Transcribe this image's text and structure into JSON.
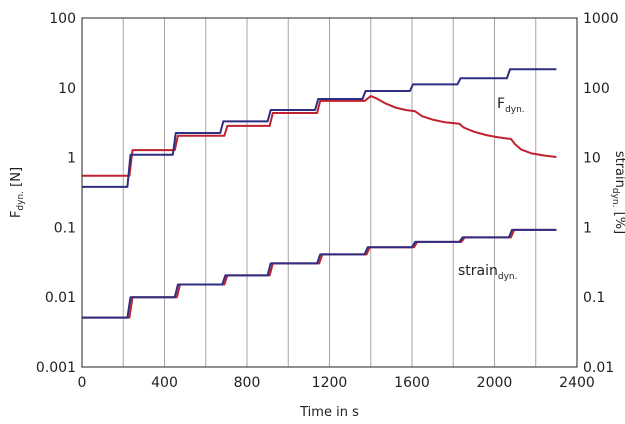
{
  "chart_data": {
    "type": "line",
    "xlabel": "Time in s",
    "ylabel_left": {
      "main": "F",
      "sub": "dyn.",
      "unit": " [N]"
    },
    "ylabel_right": {
      "main": "strain",
      "sub": "dyn.",
      "unit": " [%]"
    },
    "x_ticks": [
      "0",
      "400",
      "800",
      "1200",
      "1600",
      "2000",
      "2400"
    ],
    "xlim": [
      0,
      2400
    ],
    "x_grid": [
      0,
      200,
      400,
      600,
      800,
      1000,
      1200,
      1400,
      1600,
      1800,
      2000,
      2200,
      2400
    ],
    "y_left_ticks": [
      "0.001",
      "0.01",
      "0.1",
      "1",
      "10",
      "100"
    ],
    "y_left_values": [
      0.001,
      0.01,
      0.1,
      1,
      10,
      100
    ],
    "y_left_scale": "log",
    "ylim_left": [
      0.001,
      100
    ],
    "y_right_ticks": [
      "0.01",
      "0.1",
      "1",
      "10",
      "100",
      "1000"
    ],
    "y_right_values": [
      0.01,
      0.1,
      1,
      10,
      100,
      1000
    ],
    "y_right_scale": "log",
    "ylim_right": [
      0.01,
      1000
    ],
    "grid": "vertical",
    "series": [
      {
        "label_main": "F",
        "label_sub": "dyn.",
        "axis": "left",
        "color": "#c0212e",
        "points": [
          [
            0,
            0.55
          ],
          [
            230,
            0.55
          ],
          [
            245,
            1.28
          ],
          [
            450,
            1.28
          ],
          [
            465,
            2.05
          ],
          [
            690,
            2.05
          ],
          [
            705,
            2.85
          ],
          [
            910,
            2.85
          ],
          [
            925,
            4.35
          ],
          [
            1140,
            4.35
          ],
          [
            1155,
            6.5
          ],
          [
            1370,
            6.5
          ],
          [
            1400,
            7.6
          ],
          [
            1430,
            7.0
          ],
          [
            1470,
            6.0
          ],
          [
            1520,
            5.2
          ],
          [
            1570,
            4.8
          ],
          [
            1615,
            4.6
          ],
          [
            1650,
            3.9
          ],
          [
            1700,
            3.5
          ],
          [
            1760,
            3.2
          ],
          [
            1830,
            3.05
          ],
          [
            1850,
            2.7
          ],
          [
            1900,
            2.35
          ],
          [
            1960,
            2.1
          ],
          [
            2020,
            1.95
          ],
          [
            2080,
            1.85
          ],
          [
            2100,
            1.55
          ],
          [
            2130,
            1.3
          ],
          [
            2180,
            1.15
          ],
          [
            2240,
            1.07
          ],
          [
            2300,
            1.02
          ]
        ]
      },
      {
        "axis": "left",
        "color": "#2e2e82",
        "points": [
          [
            0,
            0.38
          ],
          [
            220,
            0.38
          ],
          [
            235,
            1.1
          ],
          [
            440,
            1.1
          ],
          [
            455,
            2.25
          ],
          [
            670,
            2.25
          ],
          [
            685,
            3.3
          ],
          [
            900,
            3.3
          ],
          [
            915,
            4.8
          ],
          [
            1130,
            4.8
          ],
          [
            1145,
            6.9
          ],
          [
            1360,
            6.9
          ],
          [
            1375,
            9.0
          ],
          [
            1590,
            9.0
          ],
          [
            1605,
            11.2
          ],
          [
            1820,
            11.2
          ],
          [
            1835,
            13.7
          ],
          [
            2060,
            13.7
          ],
          [
            2075,
            18.4
          ],
          [
            2300,
            18.4
          ]
        ]
      },
      {
        "label_main": "strain",
        "label_sub": "dyn.",
        "axis": "right",
        "color": "#c0212e",
        "points": [
          [
            0,
            0.051
          ],
          [
            230,
            0.051
          ],
          [
            245,
            0.1
          ],
          [
            460,
            0.1
          ],
          [
            475,
            0.152
          ],
          [
            690,
            0.152
          ],
          [
            705,
            0.205
          ],
          [
            910,
            0.205
          ],
          [
            925,
            0.305
          ],
          [
            1150,
            0.305
          ],
          [
            1165,
            0.41
          ],
          [
            1380,
            0.41
          ],
          [
            1395,
            0.52
          ],
          [
            1610,
            0.52
          ],
          [
            1625,
            0.62
          ],
          [
            1840,
            0.62
          ],
          [
            1855,
            0.72
          ],
          [
            2080,
            0.72
          ],
          [
            2095,
            0.92
          ],
          [
            2300,
            0.92
          ]
        ]
      },
      {
        "axis": "right",
        "color": "#2e2e82",
        "points": [
          [
            0,
            0.051
          ],
          [
            220,
            0.051
          ],
          [
            235,
            0.1
          ],
          [
            450,
            0.1
          ],
          [
            465,
            0.152
          ],
          [
            680,
            0.152
          ],
          [
            695,
            0.205
          ],
          [
            900,
            0.205
          ],
          [
            915,
            0.305
          ],
          [
            1140,
            0.305
          ],
          [
            1155,
            0.41
          ],
          [
            1370,
            0.41
          ],
          [
            1385,
            0.52
          ],
          [
            1600,
            0.52
          ],
          [
            1615,
            0.62
          ],
          [
            1830,
            0.62
          ],
          [
            1845,
            0.72
          ],
          [
            2070,
            0.72
          ],
          [
            2085,
            0.92
          ],
          [
            2300,
            0.92
          ]
        ]
      }
    ]
  }
}
